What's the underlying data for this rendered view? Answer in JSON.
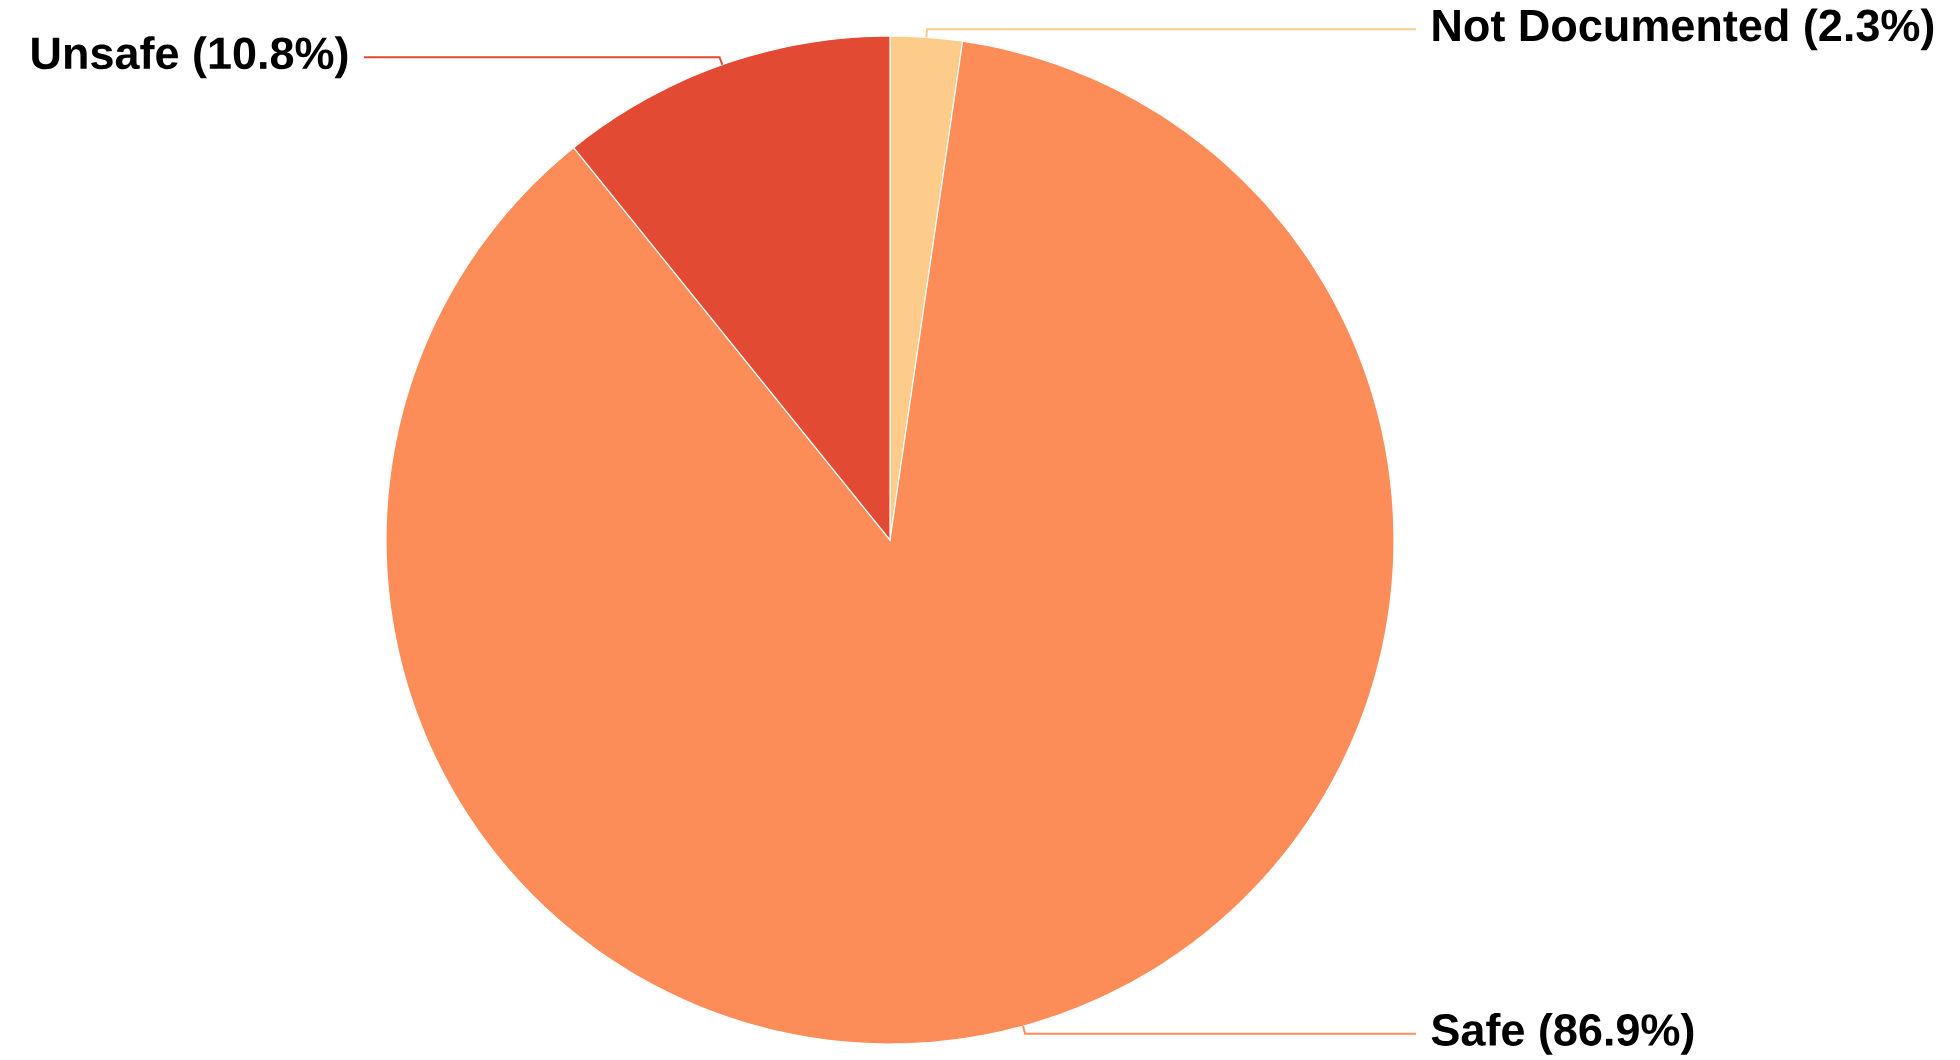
{
  "chart_data": {
    "type": "pie",
    "categories": [
      "Not Documented (2.3%)",
      "Safe (86.9%)",
      "Unsafe (10.8%)"
    ],
    "values": [
      2.3,
      86.9,
      10.8
    ],
    "colors": [
      "#fdcc8a",
      "#fc8d59",
      "#e34a33"
    ]
  }
}
